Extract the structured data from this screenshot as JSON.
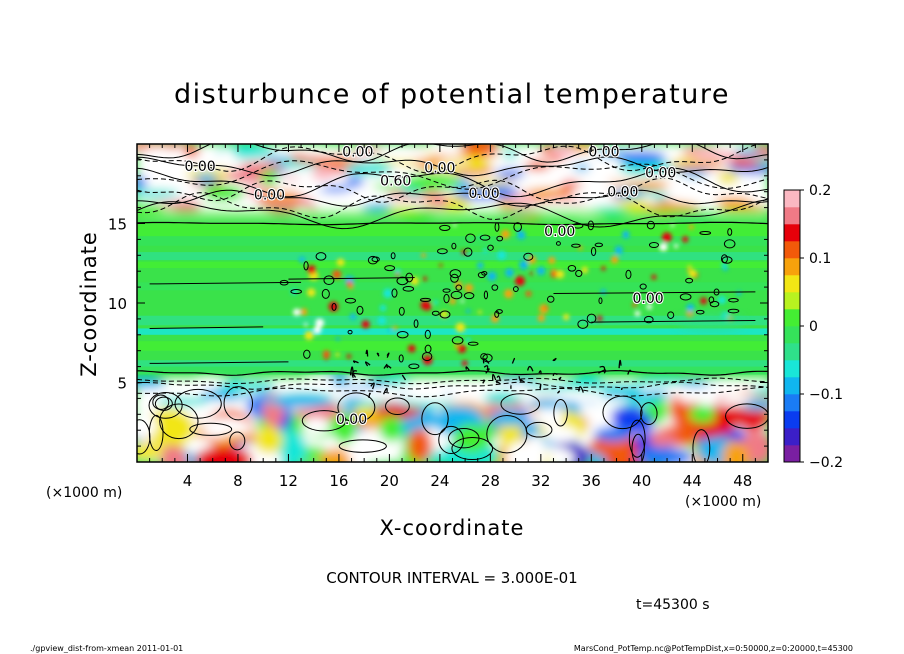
{
  "chart_data": {
    "type": "heatmap",
    "title": "disturbunce of potential temperature",
    "xlabel": "X-coordinate",
    "ylabel": "Z-coordinate",
    "x_unit": "(×1000 m)",
    "y_unit": "(×1000 m)",
    "xlim": [
      0,
      50
    ],
    "ylim": [
      0,
      20
    ],
    "x_ticks": [
      4,
      8,
      12,
      16,
      20,
      24,
      28,
      32,
      36,
      40,
      44,
      48
    ],
    "y_ticks": [
      5,
      10,
      15
    ],
    "colorbar": {
      "min": -0.2,
      "max": 0.2,
      "ticks": [
        0.2,
        0.1,
        0,
        -0.1,
        -0.2
      ],
      "tick_labels": [
        "0.2",
        "0.1",
        "0",
        "−0.1",
        "−0.2"
      ],
      "colors": [
        "#7a1fa2",
        "#3b1fc8",
        "#0a3cf0",
        "#1a7cf5",
        "#10b6ef",
        "#19e6d8",
        "#2fe08a",
        "#35e35a",
        "#44ee33",
        "#b8f220",
        "#f2e615",
        "#f7a20c",
        "#f25a0a",
        "#e6000a",
        "#f07a86",
        "#fbb8c2"
      ]
    },
    "contour_labels": [
      {
        "text": "0.00",
        "x": 17.5,
        "z": 19.2
      },
      {
        "text": "0.00",
        "x": 5.0,
        "z": 18.3
      },
      {
        "text": "0.00",
        "x": 24.0,
        "z": 18.2
      },
      {
        "text": "0.00",
        "x": 37.0,
        "z": 19.2
      },
      {
        "text": "0.00",
        "x": 41.5,
        "z": 17.9
      },
      {
        "text": "0.60",
        "x": 20.5,
        "z": 17.4
      },
      {
        "text": "0.00",
        "x": 10.5,
        "z": 16.5
      },
      {
        "text": "0.00",
        "x": 27.5,
        "z": 16.6
      },
      {
        "text": "0.00",
        "x": 38.5,
        "z": 16.7
      },
      {
        "text": "0.00",
        "x": 33.5,
        "z": 14.2
      },
      {
        "text": "0.00",
        "x": 40.5,
        "z": 10.0
      },
      {
        "text": "0.00",
        "x": 17.0,
        "z": 2.4
      }
    ],
    "contour_interval_text": "CONTOUR INTERVAL = 3.000E-01",
    "time_text": "t=45300 s",
    "footer_left": "./gpview_dist-from-xmean  2011-01-01",
    "footer_right": "MarsCond_PotTemp.nc@PotTempDist,x=0:50000,z=0:20000,t=45300"
  }
}
